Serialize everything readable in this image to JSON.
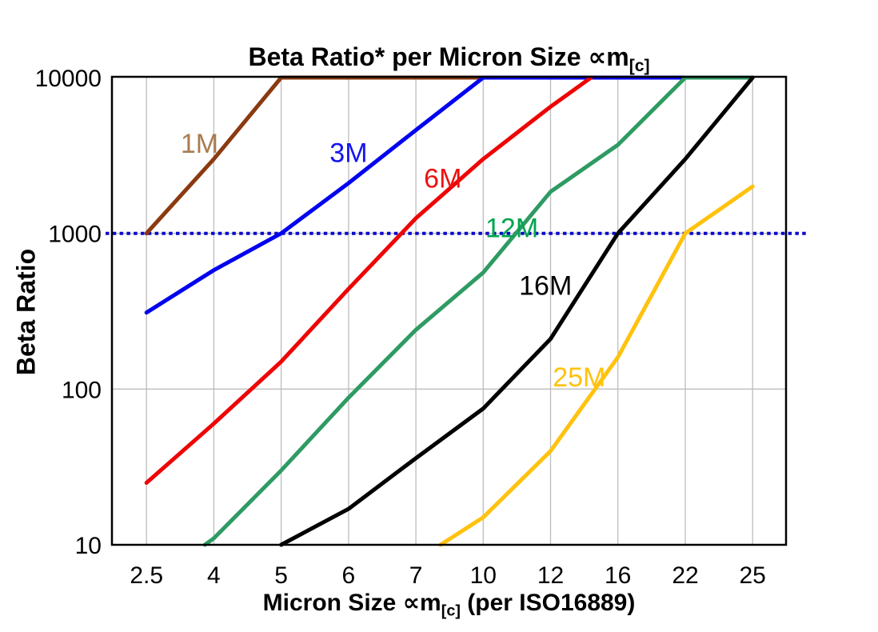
{
  "chart_data": {
    "type": "line",
    "title": {
      "main": "Beta Ratio* per Micron Size ",
      "symbol": "∝m",
      "subscript": "[c]"
    },
    "xlabel": {
      "main": "Micron Size ",
      "symbol": "∝m",
      "subscript": "[c]",
      "suffix": " (per ISO16889)"
    },
    "ylabel": "Beta Ratio",
    "y_scale": "log",
    "ylim": [
      10,
      10000
    ],
    "y_ticks": [
      10,
      100,
      1000,
      10000
    ],
    "x_categories": [
      2.5,
      4,
      5,
      6,
      7,
      10,
      12,
      16,
      22,
      25
    ],
    "grid": {
      "vertical": true,
      "horizontal_at": [
        100,
        1000
      ]
    },
    "reference_line": {
      "value": 1000,
      "style": "dotted",
      "color": "#0a0acc"
    },
    "series": [
      {
        "name": "1M",
        "line_color": "#8b3a10",
        "label_color": "#a97c50",
        "label_at": {
          "x": 3.68,
          "y": 3800
        },
        "points": [
          [
            2.5,
            1000
          ],
          [
            4,
            3000
          ],
          [
            5,
            10000
          ],
          [
            10,
            10000
          ]
        ]
      },
      {
        "name": "3M",
        "line_color": "#0202f0",
        "label_color": "#1414f0",
        "label_at": {
          "x": 6.0,
          "y": 3300
        },
        "points": [
          [
            2.5,
            310
          ],
          [
            4,
            580
          ],
          [
            5,
            1000
          ],
          [
            6,
            2100
          ],
          [
            7,
            4600
          ],
          [
            10,
            10000
          ],
          [
            22,
            10000
          ]
        ]
      },
      {
        "name": "6M",
        "line_color": "#ee0505",
        "label_color": "#ee1111",
        "label_at": {
          "x": 8.2,
          "y": 2260
        },
        "points": [
          [
            2.5,
            25
          ],
          [
            4,
            60
          ],
          [
            5,
            150
          ],
          [
            6,
            440
          ],
          [
            7,
            1250
          ],
          [
            10,
            3000
          ],
          [
            12,
            6500
          ],
          [
            14.4,
            10000
          ]
        ]
      },
      {
        "name": "12M",
        "line_color": "#2e9b62",
        "label_color": "#00a54f",
        "label_at": {
          "x": 10.85,
          "y": 1090
        },
        "points": [
          [
            3.8,
            10
          ],
          [
            4,
            11
          ],
          [
            5,
            30
          ],
          [
            6,
            88
          ],
          [
            7,
            240
          ],
          [
            10,
            560
          ],
          [
            12,
            1850
          ],
          [
            16,
            3700
          ],
          [
            22,
            10000
          ],
          [
            25,
            10000
          ]
        ]
      },
      {
        "name": "16M",
        "line_color": "#000000",
        "label_color": "#000000",
        "label_at": {
          "x": 11.85,
          "y": 465
        },
        "points": [
          [
            5,
            10
          ],
          [
            6,
            17
          ],
          [
            7,
            36
          ],
          [
            10,
            75
          ],
          [
            12,
            210
          ],
          [
            16,
            1000
          ],
          [
            22,
            3000
          ],
          [
            25,
            10000
          ]
        ]
      },
      {
        "name": "25M",
        "line_color": "#ffc20e",
        "label_color": "#ffc20e",
        "label_at": {
          "x": 13.7,
          "y": 120
        },
        "points": [
          [
            8.1,
            10
          ],
          [
            10,
            15
          ],
          [
            12,
            40
          ],
          [
            16,
            160
          ],
          [
            22,
            1000
          ],
          [
            25,
            2000
          ]
        ]
      }
    ]
  },
  "colors": {
    "background": "#ffffff",
    "grid": "#bdbdbd",
    "border": "#000000",
    "text": "#000000"
  }
}
